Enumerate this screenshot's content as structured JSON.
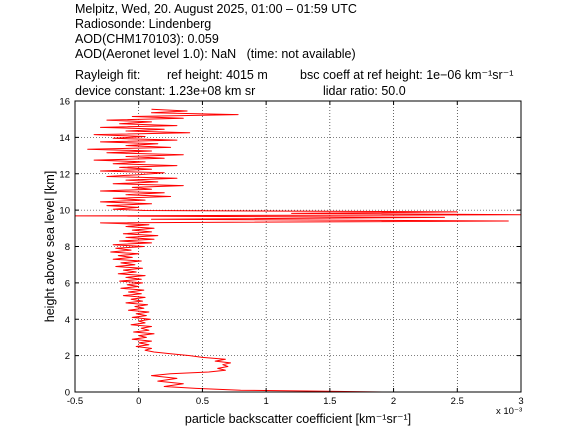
{
  "header": {
    "line1": "Melpitz, Wed, 20. August 2025, 01:00 – 01:59 UTC",
    "line2": "Radiosonde: Lindenberg",
    "line3": "AOD(CHM170103): 0.059",
    "line4": "AOD(Aeronet level 1.0): NaN   (time: not available)",
    "rayleigh_label": "Rayleigh fit:",
    "ref_height": "ref height: 4015 m",
    "bsc_coeff": "bsc coeff at ref height: 1e−06 km⁻¹sr⁻¹",
    "device_constant": "device constant: 1.23e+08 km sr",
    "lidar_ratio": "lidar ratio: 50.0"
  },
  "chart_data": {
    "type": "line",
    "xlabel": "particle backscatter coefficient [km⁻¹sr⁻¹]",
    "ylabel": "height above sea level [km]",
    "x_exponent_label": "x 10⁻³",
    "xlim": [
      -0.5,
      3.0
    ],
    "ylim": [
      0,
      16
    ],
    "xticks": [
      -0.5,
      0,
      0.5,
      1,
      1.5,
      2,
      2.5,
      3
    ],
    "xtick_labels": [
      "-0.5",
      "0",
      "0.5",
      "1",
      "1.5",
      "2",
      "2.5",
      "3"
    ],
    "yticks": [
      0,
      2,
      4,
      6,
      8,
      10,
      12,
      14,
      16
    ],
    "ytick_labels": [
      "0",
      "2",
      "4",
      "6",
      "8",
      "10",
      "12",
      "14",
      "16"
    ],
    "grid": true,
    "series_color": "#ff0000",
    "series": [
      {
        "x_units": "1e-3 km^-1 sr^-1",
        "points": [
          [
            1.93,
            0.0
          ],
          [
            1.4,
            0.05
          ],
          [
            0.8,
            0.1
          ],
          [
            0.45,
            0.2
          ],
          [
            0.2,
            0.3
          ],
          [
            0.35,
            0.45
          ],
          [
            0.15,
            0.6
          ],
          [
            0.3,
            0.75
          ],
          [
            0.1,
            0.9
          ],
          [
            0.25,
            1.0
          ],
          [
            0.55,
            1.1
          ],
          [
            0.68,
            1.2
          ],
          [
            0.62,
            1.3
          ],
          [
            0.7,
            1.4
          ],
          [
            0.66,
            1.5
          ],
          [
            0.72,
            1.6
          ],
          [
            0.6,
            1.7
          ],
          [
            0.68,
            1.8
          ],
          [
            0.5,
            1.9
          ],
          [
            0.4,
            2.0
          ],
          [
            0.25,
            2.1
          ],
          [
            0.12,
            2.2
          ],
          [
            0.05,
            2.3
          ],
          [
            0.1,
            2.4
          ],
          [
            -0.02,
            2.5
          ],
          [
            0.08,
            2.6
          ],
          [
            0.0,
            2.7
          ],
          [
            0.1,
            2.8
          ],
          [
            -0.05,
            2.9
          ],
          [
            0.06,
            3.0
          ],
          [
            0.0,
            3.1
          ],
          [
            0.12,
            3.2
          ],
          [
            -0.04,
            3.3
          ],
          [
            0.08,
            3.4
          ],
          [
            0.02,
            3.5
          ],
          [
            0.1,
            3.6
          ],
          [
            -0.06,
            3.7
          ],
          [
            0.05,
            3.8
          ],
          [
            0.0,
            3.9
          ],
          [
            0.09,
            4.0
          ],
          [
            -0.05,
            4.1
          ],
          [
            0.06,
            4.2
          ],
          [
            -0.02,
            4.3
          ],
          [
            0.08,
            4.4
          ],
          [
            -0.08,
            4.5
          ],
          [
            0.04,
            4.6
          ],
          [
            -0.03,
            4.7
          ],
          [
            0.07,
            4.8
          ],
          [
            -0.1,
            4.9
          ],
          [
            0.03,
            5.0
          ],
          [
            -0.06,
            5.1
          ],
          [
            0.05,
            5.2
          ],
          [
            -0.12,
            5.3
          ],
          [
            0.02,
            5.4
          ],
          [
            -0.08,
            5.5
          ],
          [
            0.04,
            5.6
          ],
          [
            -0.14,
            5.7
          ],
          [
            0.0,
            5.8
          ],
          [
            -0.09,
            5.9
          ],
          [
            0.03,
            6.0
          ],
          [
            -0.15,
            6.1
          ],
          [
            0.02,
            6.2
          ],
          [
            -0.1,
            6.3
          ],
          [
            0.05,
            6.4
          ],
          [
            -0.16,
            6.5
          ],
          [
            -0.02,
            6.6
          ],
          [
            -0.12,
            6.7
          ],
          [
            0.03,
            6.8
          ],
          [
            -0.18,
            6.9
          ],
          [
            -0.03,
            7.0
          ],
          [
            -0.14,
            7.1
          ],
          [
            0.02,
            7.2
          ],
          [
            -0.2,
            7.3
          ],
          [
            -0.05,
            7.4
          ],
          [
            -0.16,
            7.5
          ],
          [
            0.0,
            7.6
          ],
          [
            -0.22,
            7.7
          ],
          [
            -0.06,
            7.8
          ],
          [
            -0.18,
            7.9
          ],
          [
            0.04,
            8.0
          ],
          [
            -0.2,
            8.1
          ],
          [
            0.1,
            8.2
          ],
          [
            -0.15,
            8.3
          ],
          [
            0.12,
            8.4
          ],
          [
            -0.1,
            8.5
          ],
          [
            0.15,
            8.6
          ],
          [
            -0.12,
            8.7
          ],
          [
            0.1,
            8.8
          ],
          [
            -0.05,
            8.9
          ],
          [
            0.12,
            9.0
          ],
          [
            -0.1,
            9.1
          ],
          [
            0.08,
            9.2
          ],
          [
            -0.3,
            9.3
          ],
          [
            2.9,
            9.4
          ],
          [
            0.1,
            9.5
          ],
          [
            2.4,
            9.6
          ],
          [
            -0.5,
            9.68
          ],
          [
            3.0,
            9.75
          ],
          [
            1.2,
            9.82
          ],
          [
            2.5,
            9.9
          ],
          [
            0.05,
            9.98
          ],
          [
            -0.2,
            10.05
          ],
          [
            0.0,
            10.15
          ],
          [
            -0.25,
            10.25
          ],
          [
            0.1,
            10.35
          ],
          [
            -0.3,
            10.45
          ],
          [
            0.05,
            10.55
          ],
          [
            -0.2,
            10.65
          ],
          [
            0.25,
            10.75
          ],
          [
            -0.1,
            10.85
          ],
          [
            0.2,
            10.95
          ],
          [
            -0.3,
            11.05
          ],
          [
            0.1,
            11.15
          ],
          [
            -0.05,
            11.25
          ],
          [
            0.35,
            11.35
          ],
          [
            -0.2,
            11.45
          ],
          [
            0.15,
            11.55
          ],
          [
            -0.1,
            11.65
          ],
          [
            0.3,
            11.75
          ],
          [
            -0.25,
            11.85
          ],
          [
            0.0,
            11.95
          ],
          [
            0.2,
            12.05
          ],
          [
            -0.3,
            12.15
          ],
          [
            0.1,
            12.25
          ],
          [
            -0.15,
            12.35
          ],
          [
            0.3,
            12.45
          ],
          [
            -0.2,
            12.55
          ],
          [
            0.05,
            12.65
          ],
          [
            -0.35,
            12.75
          ],
          [
            0.2,
            12.85
          ],
          [
            -0.1,
            12.95
          ],
          [
            0.35,
            13.05
          ],
          [
            -0.25,
            13.15
          ],
          [
            0.1,
            13.25
          ],
          [
            -0.4,
            13.35
          ],
          [
            0.25,
            13.45
          ],
          [
            -0.1,
            13.55
          ],
          [
            0.15,
            13.65
          ],
          [
            -0.3,
            13.75
          ],
          [
            0.3,
            13.85
          ],
          [
            -0.2,
            13.95
          ],
          [
            0.05,
            14.05
          ],
          [
            -0.35,
            14.15
          ],
          [
            0.4,
            14.25
          ],
          [
            -0.1,
            14.35
          ],
          [
            0.2,
            14.45
          ],
          [
            -0.3,
            14.55
          ],
          [
            0.3,
            14.65
          ],
          [
            -0.15,
            14.75
          ],
          [
            0.1,
            14.85
          ],
          [
            -0.25,
            14.95
          ],
          [
            0.35,
            15.05
          ],
          [
            -0.05,
            15.15
          ],
          [
            0.78,
            15.25
          ],
          [
            0.1,
            15.35
          ],
          [
            0.38,
            15.45
          ],
          [
            0.1,
            15.55
          ]
        ]
      }
    ]
  }
}
